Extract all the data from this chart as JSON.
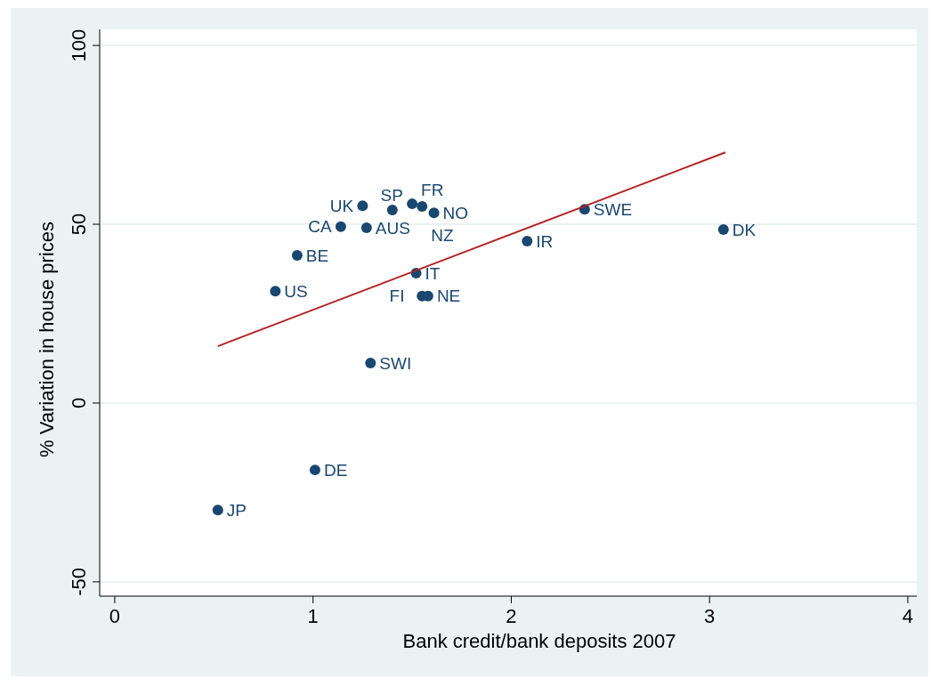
{
  "chart_data": {
    "type": "scatter",
    "xlabel": "Bank credit/bank deposits 2007",
    "ylabel": "% Variation in house prices",
    "xlim": [
      -0.076,
      4.045
    ],
    "ylim": [
      -54,
      104.5
    ],
    "xticks": [
      0,
      1,
      2,
      3,
      4
    ],
    "yticks": [
      -50,
      0,
      50,
      100
    ],
    "grid": "y",
    "marker": "circle",
    "series": [
      {
        "color": "#1a476f",
        "x": [
          0.52,
          1.01,
          1.29,
          0.81,
          0.92,
          1.14,
          1.27,
          1.25,
          1.4,
          1.5,
          1.55,
          1.61,
          1.52,
          1.55,
          1.58,
          2.08,
          2.37,
          3.07
        ],
        "values": [
          -29.9,
          -18.7,
          11.2,
          31.3,
          41.3,
          49.3,
          49.0,
          55.2,
          54.0,
          55.7,
          55.0,
          53.2,
          36.3,
          29.9,
          29.9,
          45.3,
          54.2,
          48.5
        ]
      },
      {
        "type": "line",
        "marker": "none",
        "color": "#b22222",
        "x": [
          0.52,
          3.08
        ],
        "values": [
          15.9,
          70.1
        ]
      }
    ],
    "annotations": [
      {
        "text": "JP",
        "x": 0.52,
        "y": -29.9
      },
      {
        "text": "DE",
        "x": 1.01,
        "y": -18.7
      },
      {
        "text": "SWI",
        "x": 1.29,
        "y": 11.2
      },
      {
        "text": "US",
        "x": 0.81,
        "y": 31.3
      },
      {
        "text": "BE",
        "x": 0.92,
        "y": 41.3
      },
      {
        "text": "CA",
        "x": 1.14,
        "y": 49.3
      },
      {
        "text": "AUS",
        "x": 1.27,
        "y": 49.0
      },
      {
        "text": "UK",
        "x": 1.25,
        "y": 55.2
      },
      {
        "text": "SP",
        "x": 1.4,
        "y": 54.0
      },
      {
        "text": "FR",
        "x": 1.5,
        "y": 55.7
      },
      {
        "text": "NZ",
        "x": 1.55,
        "y": 55.0
      },
      {
        "text": "NO",
        "x": 1.61,
        "y": 53.2
      },
      {
        "text": "IT",
        "x": 1.52,
        "y": 36.3
      },
      {
        "text": "FI",
        "x": 1.55,
        "y": 29.9
      },
      {
        "text": "NE",
        "x": 1.58,
        "y": 29.9
      },
      {
        "text": "IR",
        "x": 2.08,
        "y": 45.3
      },
      {
        "text": "SWE",
        "x": 2.37,
        "y": 54.2
      },
      {
        "text": "DK",
        "x": 3.07,
        "y": 48.5
      }
    ]
  }
}
